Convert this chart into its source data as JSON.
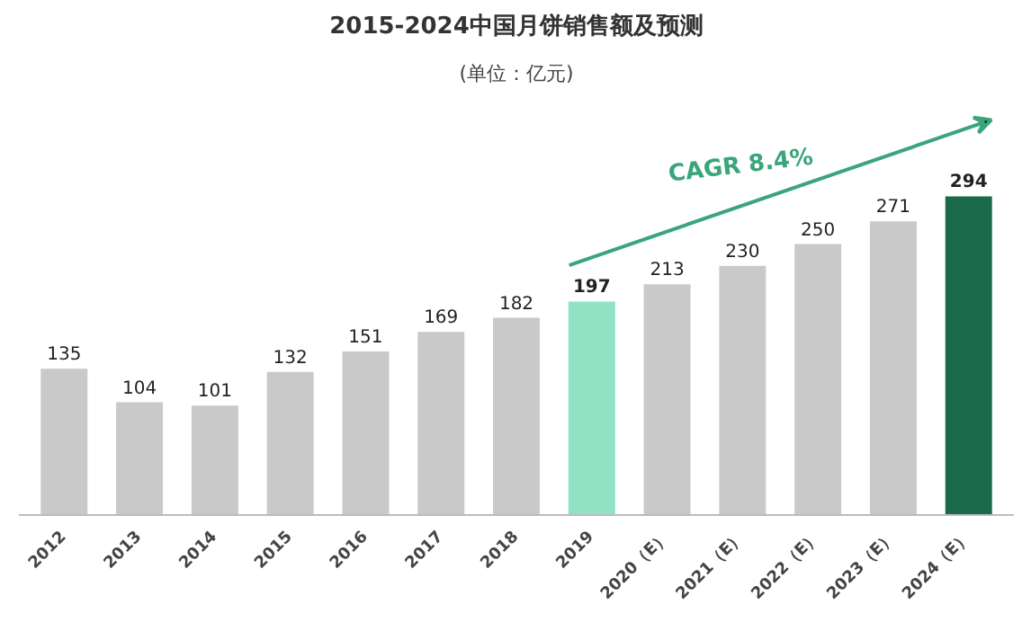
{
  "chart_data": {
    "type": "bar",
    "title": "2015-2024中国月饼销售额及预测",
    "subtitle": "(单位：亿元)",
    "categories": [
      "2012",
      "2013",
      "2014",
      "2015",
      "2016",
      "2017",
      "2018",
      "2019",
      "2020（E）",
      "2021（E）",
      "2022（E）",
      "2023（E）",
      "2024（E）"
    ],
    "values": [
      135,
      104,
      101,
      132,
      151,
      169,
      182,
      197,
      213,
      230,
      250,
      271,
      294
    ],
    "colors": [
      "#c9c9c9",
      "#c9c9c9",
      "#c9c9c9",
      "#c9c9c9",
      "#c9c9c9",
      "#c9c9c9",
      "#c9c9c9",
      "#8fe3c4",
      "#c9c9c9",
      "#c9c9c9",
      "#c9c9c9",
      "#c9c9c9",
      "#1b6a4c"
    ],
    "data_labels": true,
    "annotations": [
      "CAGR 8.4%"
    ]
  }
}
